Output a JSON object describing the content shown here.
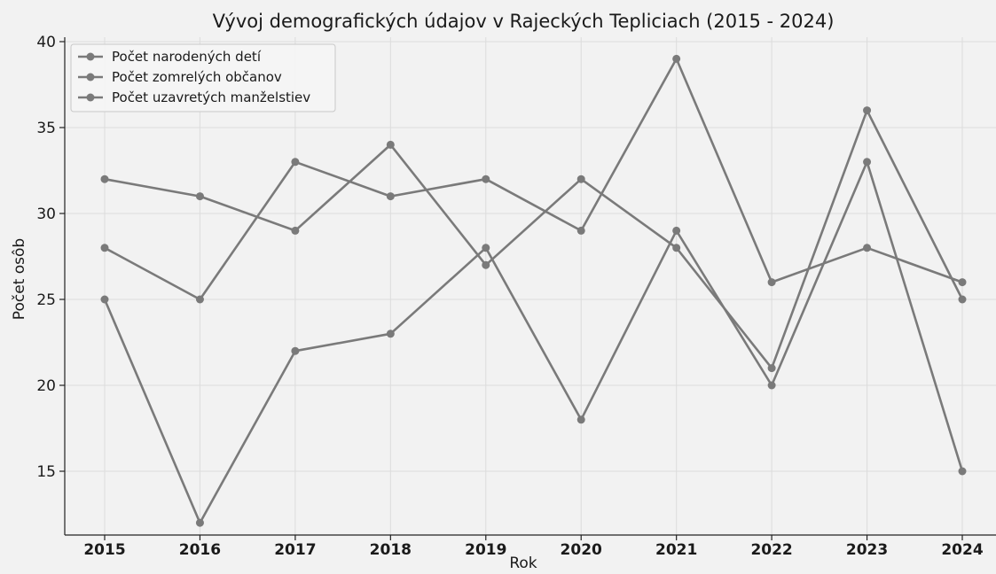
{
  "chart_data": {
    "type": "line",
    "title": "Vývoj demografických údajov v Rajeckých Tepliciach (2015 - 2024)",
    "xlabel": "Rok",
    "ylabel": "Počet osôb",
    "categories": [
      "2015",
      "2016",
      "2017",
      "2018",
      "2019",
      "2020",
      "2021",
      "2022",
      "2023",
      "2024"
    ],
    "x_ticks": [
      "2015",
      "2016",
      "2017",
      "2018",
      "2019",
      "2020",
      "2021",
      "2022",
      "2023",
      "2024"
    ],
    "y_ticks": [
      "15",
      "20",
      "25",
      "30",
      "35",
      "40"
    ],
    "y_tick_values": [
      15,
      20,
      25,
      30,
      35,
      40
    ],
    "ylim": [
      12,
      40
    ],
    "grid": true,
    "legend_position": "top-left",
    "series": [
      {
        "name": "Počet narodených detí",
        "values": [
          32,
          31,
          29,
          34,
          27,
          32,
          28,
          21,
          36,
          25
        ],
        "color": "#7a7a7a"
      },
      {
        "name": "Počet zomrelých občanov",
        "values": [
          28,
          25,
          33,
          31,
          32,
          29,
          39,
          26,
          28,
          26
        ],
        "color": "#7a7a7a"
      },
      {
        "name": "Počet uzavretých manželstiev",
        "values": [
          25,
          12,
          22,
          23,
          28,
          18,
          29,
          20,
          33,
          15
        ],
        "color": "#7a7a7a"
      }
    ]
  }
}
